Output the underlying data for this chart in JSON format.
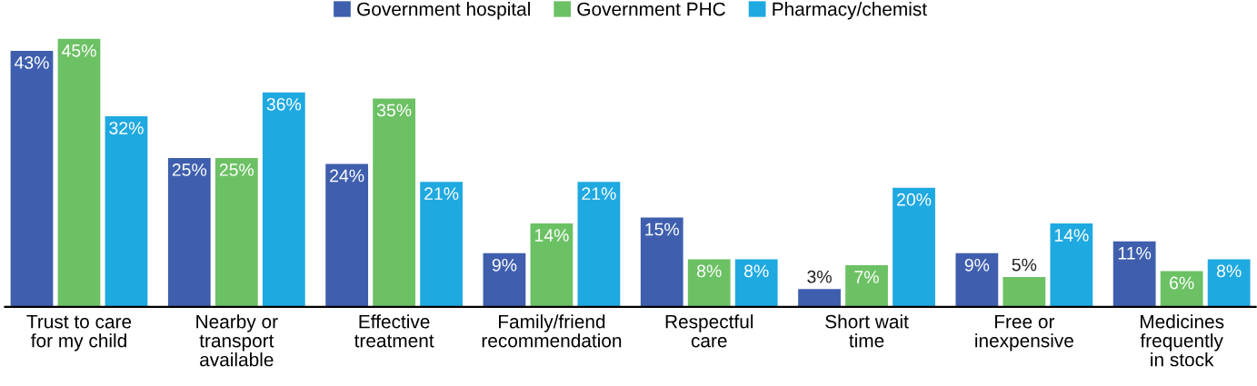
{
  "chart_data": {
    "type": "bar",
    "categories": [
      "Trust to care\nfor my child",
      "Nearby or\ntransport\navailable",
      "Effective\ntreatment",
      "Family/friend\nrecommendation",
      "Respectful\ncare",
      "Short wait\ntime",
      "Free or\ninexpensive",
      "Medicines\nfrequently\nin stock"
    ],
    "series": [
      {
        "name": "Government hospital",
        "color": "#3f5fae",
        "values": [
          43,
          25,
          24,
          9,
          15,
          3,
          9,
          11
        ],
        "value_labels": [
          "43%",
          "25%",
          "24%",
          "9%",
          "15%",
          "3%",
          "9%",
          "11%"
        ]
      },
      {
        "name": "Government PHC",
        "color": "#6cc164",
        "values": [
          45,
          25,
          35,
          14,
          8,
          7,
          5,
          6
        ],
        "value_labels": [
          "45%",
          "25%",
          "35%",
          "14%",
          "8%",
          "7%",
          "5%",
          "6%"
        ]
      },
      {
        "name": "Pharmacy/chemist",
        "color": "#1fa9e1",
        "values": [
          32,
          36,
          21,
          21,
          8,
          20,
          14,
          8
        ],
        "value_labels": [
          "32%",
          "36%",
          "21%",
          "21%",
          "8%",
          "20%",
          "14%",
          "8%"
        ]
      }
    ],
    "legend": "top",
    "grid": false
  }
}
